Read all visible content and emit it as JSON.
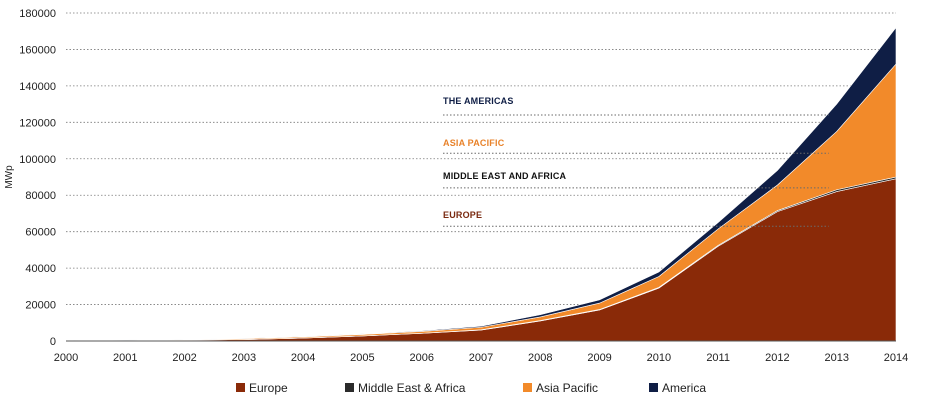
{
  "chart_data": {
    "type": "area",
    "stacked": true,
    "ylabel": "MWp",
    "ylim": [
      0,
      180000
    ],
    "yticks": [
      0,
      20000,
      40000,
      60000,
      80000,
      100000,
      120000,
      140000,
      160000,
      180000
    ],
    "grid": "horizontal-dotted",
    "legend_position": "bottom",
    "x": [
      "2000",
      "2001",
      "2002",
      "2003",
      "2004",
      "2005",
      "2006",
      "2007",
      "2008",
      "2009",
      "2010",
      "2011",
      "2012",
      "2013",
      "2014"
    ],
    "series": [
      {
        "name": "Europe",
        "color": "#8a2a08",
        "values": [
          150,
          300,
          500,
          800,
          1600,
          2800,
          4200,
          6000,
          11000,
          17000,
          29000,
          52000,
          71000,
          82000,
          89000
        ]
      },
      {
        "name": "Middle East & Africa",
        "color": "#2b2b2b",
        "values": [
          0,
          0,
          0,
          0,
          0,
          0,
          50,
          150,
          200,
          300,
          400,
          500,
          600,
          1000,
          1000
        ]
      },
      {
        "name": "Asia Pacific",
        "color": "#f28a2a",
        "values": [
          100,
          200,
          300,
          500,
          600,
          800,
          1000,
          1400,
          2000,
          3500,
          6000,
          9000,
          14000,
          32000,
          62000
        ]
      },
      {
        "name": "America",
        "color": "#0f1e45",
        "values": [
          50,
          70,
          100,
          100,
          200,
          300,
          400,
          600,
          1200,
          1800,
          2500,
          3500,
          8000,
          15000,
          20000
        ]
      }
    ],
    "annotations": [
      {
        "text": "THE AMERICAS",
        "color": "#0f1e45",
        "x": "2007",
        "y": 130000
      },
      {
        "text": "ASIA PACIFIC",
        "color": "#e8822a",
        "x": "2007",
        "y": 107000
      },
      {
        "text": "MIDDLE EAST AND AFRICA",
        "color": "#111111",
        "x": "2007",
        "y": 89000
      },
      {
        "text": "EUROPE",
        "color": "#7a2a10",
        "x": "2007",
        "y": 67500
      }
    ],
    "annotation_lines": [
      {
        "x_start": "2007",
        "x_end": "2013",
        "y": 124000
      },
      {
        "x_start": "2007",
        "x_end": "2013",
        "y": 103000
      },
      {
        "x_start": "2007",
        "x_end": "2013",
        "y": 84000
      },
      {
        "x_start": "2007",
        "x_end": "2013",
        "y": 63000
      }
    ]
  }
}
